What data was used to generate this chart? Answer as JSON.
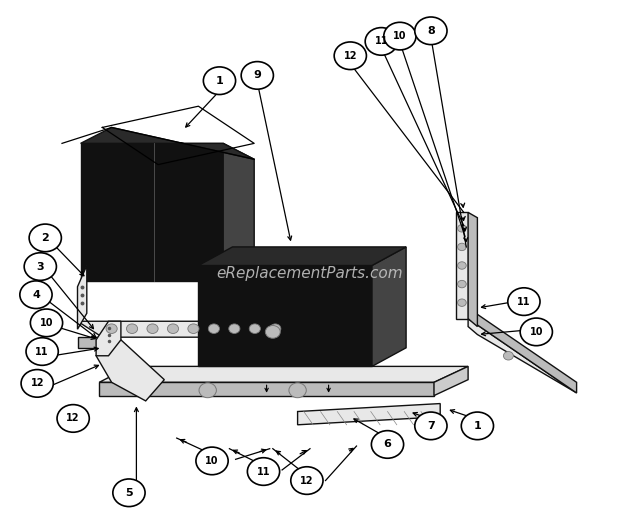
{
  "fig_width": 6.2,
  "fig_height": 5.31,
  "dpi": 100,
  "bg_color": "#ffffff",
  "watermark": "eReplacementParts.com",
  "watermark_color": "#cccccc",
  "watermark_fontsize": 11,
  "dark": "#111111",
  "dark2": "#2a2a2a",
  "dark3": "#444444",
  "light": "#e8e8e8",
  "mid": "#bbbbbb",
  "lc": "#111111",
  "lw": 1.0,
  "callout_r": 0.026,
  "callout_fs_1": 8.0,
  "callout_fs_2": 7.0
}
